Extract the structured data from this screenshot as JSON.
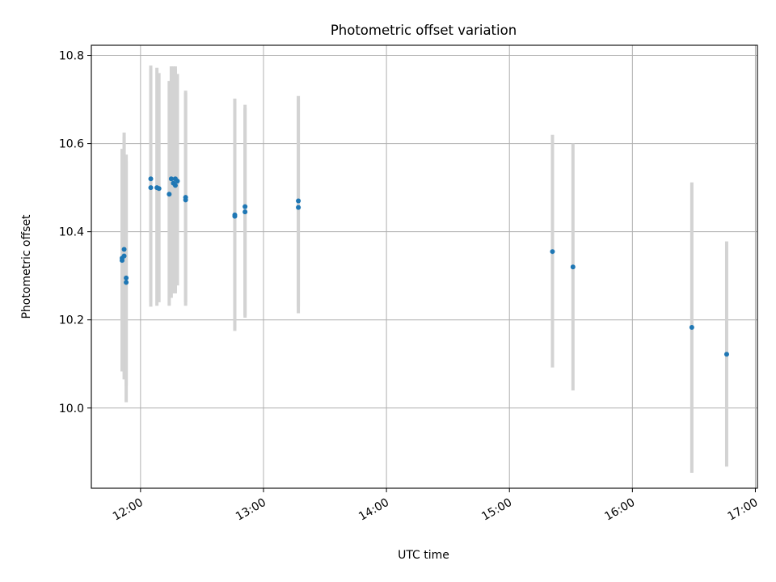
{
  "chart_data": {
    "type": "scatter",
    "title": "Photometric offset variation",
    "xlabel": "UTC time",
    "ylabel": "Photometric offset",
    "xlim": [
      "11:36",
      "17:01"
    ],
    "ylim": [
      9.818,
      10.823
    ],
    "x_ticks": [
      "12:00",
      "13:00",
      "14:00",
      "15:00",
      "16:00",
      "17:00"
    ],
    "y_ticks": [
      10.0,
      10.2,
      10.4,
      10.6,
      10.8
    ],
    "grid": true,
    "legend": "none",
    "colors": {
      "points": "#1f77b4",
      "errorbars": "#d3d3d3",
      "grid": "#b0b0b0"
    },
    "series": [
      {
        "points": [
          {
            "x": "11:51",
            "y": 10.335,
            "ylo": 10.083,
            "yhi": 10.588
          },
          {
            "x": "11:51",
            "y": 10.34,
            "ylo": 10.1,
            "yhi": 10.58
          },
          {
            "x": "11:52",
            "y": 10.36,
            "ylo": 10.065,
            "yhi": 10.625
          },
          {
            "x": "11:52",
            "y": 10.345,
            "ylo": 10.095,
            "yhi": 10.615
          },
          {
            "x": "11:53",
            "y": 10.285,
            "ylo": 10.013,
            "yhi": 10.575
          },
          {
            "x": "11:53",
            "y": 10.295,
            "ylo": 10.05,
            "yhi": 10.56
          },
          {
            "x": "12:05",
            "y": 10.52,
            "ylo": 10.23,
            "yhi": 10.777
          },
          {
            "x": "12:05",
            "y": 10.5,
            "ylo": 10.24,
            "yhi": 10.77
          },
          {
            "x": "12:08",
            "y": 10.5,
            "ylo": 10.232,
            "yhi": 10.772
          },
          {
            "x": "12:09",
            "y": 10.498,
            "ylo": 10.24,
            "yhi": 10.76
          },
          {
            "x": "12:14",
            "y": 10.485,
            "ylo": 10.232,
            "yhi": 10.742
          },
          {
            "x": "12:15",
            "y": 10.52,
            "ylo": 10.25,
            "yhi": 10.775
          },
          {
            "x": "12:16",
            "y": 10.51,
            "ylo": 10.26,
            "yhi": 10.775
          },
          {
            "x": "12:17",
            "y": 10.505,
            "ylo": 10.26,
            "yhi": 10.775
          },
          {
            "x": "12:17",
            "y": 10.52,
            "ylo": 10.265,
            "yhi": 10.77
          },
          {
            "x": "12:18",
            "y": 10.515,
            "ylo": 10.278,
            "yhi": 10.758
          },
          {
            "x": "12:22",
            "y": 10.478,
            "ylo": 10.232,
            "yhi": 10.72
          },
          {
            "x": "12:22",
            "y": 10.472,
            "ylo": 10.24,
            "yhi": 10.715
          },
          {
            "x": "12:46",
            "y": 10.438,
            "ylo": 10.175,
            "yhi": 10.702
          },
          {
            "x": "12:46",
            "y": 10.435,
            "ylo": 10.18,
            "yhi": 10.695
          },
          {
            "x": "12:51",
            "y": 10.457,
            "ylo": 10.205,
            "yhi": 10.688
          },
          {
            "x": "12:51",
            "y": 10.445,
            "ylo": 10.21,
            "yhi": 10.68
          },
          {
            "x": "13:17",
            "y": 10.47,
            "ylo": 10.215,
            "yhi": 10.708
          },
          {
            "x": "13:17",
            "y": 10.455,
            "ylo": 10.23,
            "yhi": 10.7
          },
          {
            "x": "15:21",
            "y": 10.355,
            "ylo": 10.092,
            "yhi": 10.62
          },
          {
            "x": "15:31",
            "y": 10.32,
            "ylo": 10.04,
            "yhi": 10.6
          },
          {
            "x": "16:29",
            "y": 10.183,
            "ylo": 9.853,
            "yhi": 10.512
          },
          {
            "x": "16:46",
            "y": 10.122,
            "ylo": 9.867,
            "yhi": 10.378
          }
        ]
      }
    ]
  }
}
